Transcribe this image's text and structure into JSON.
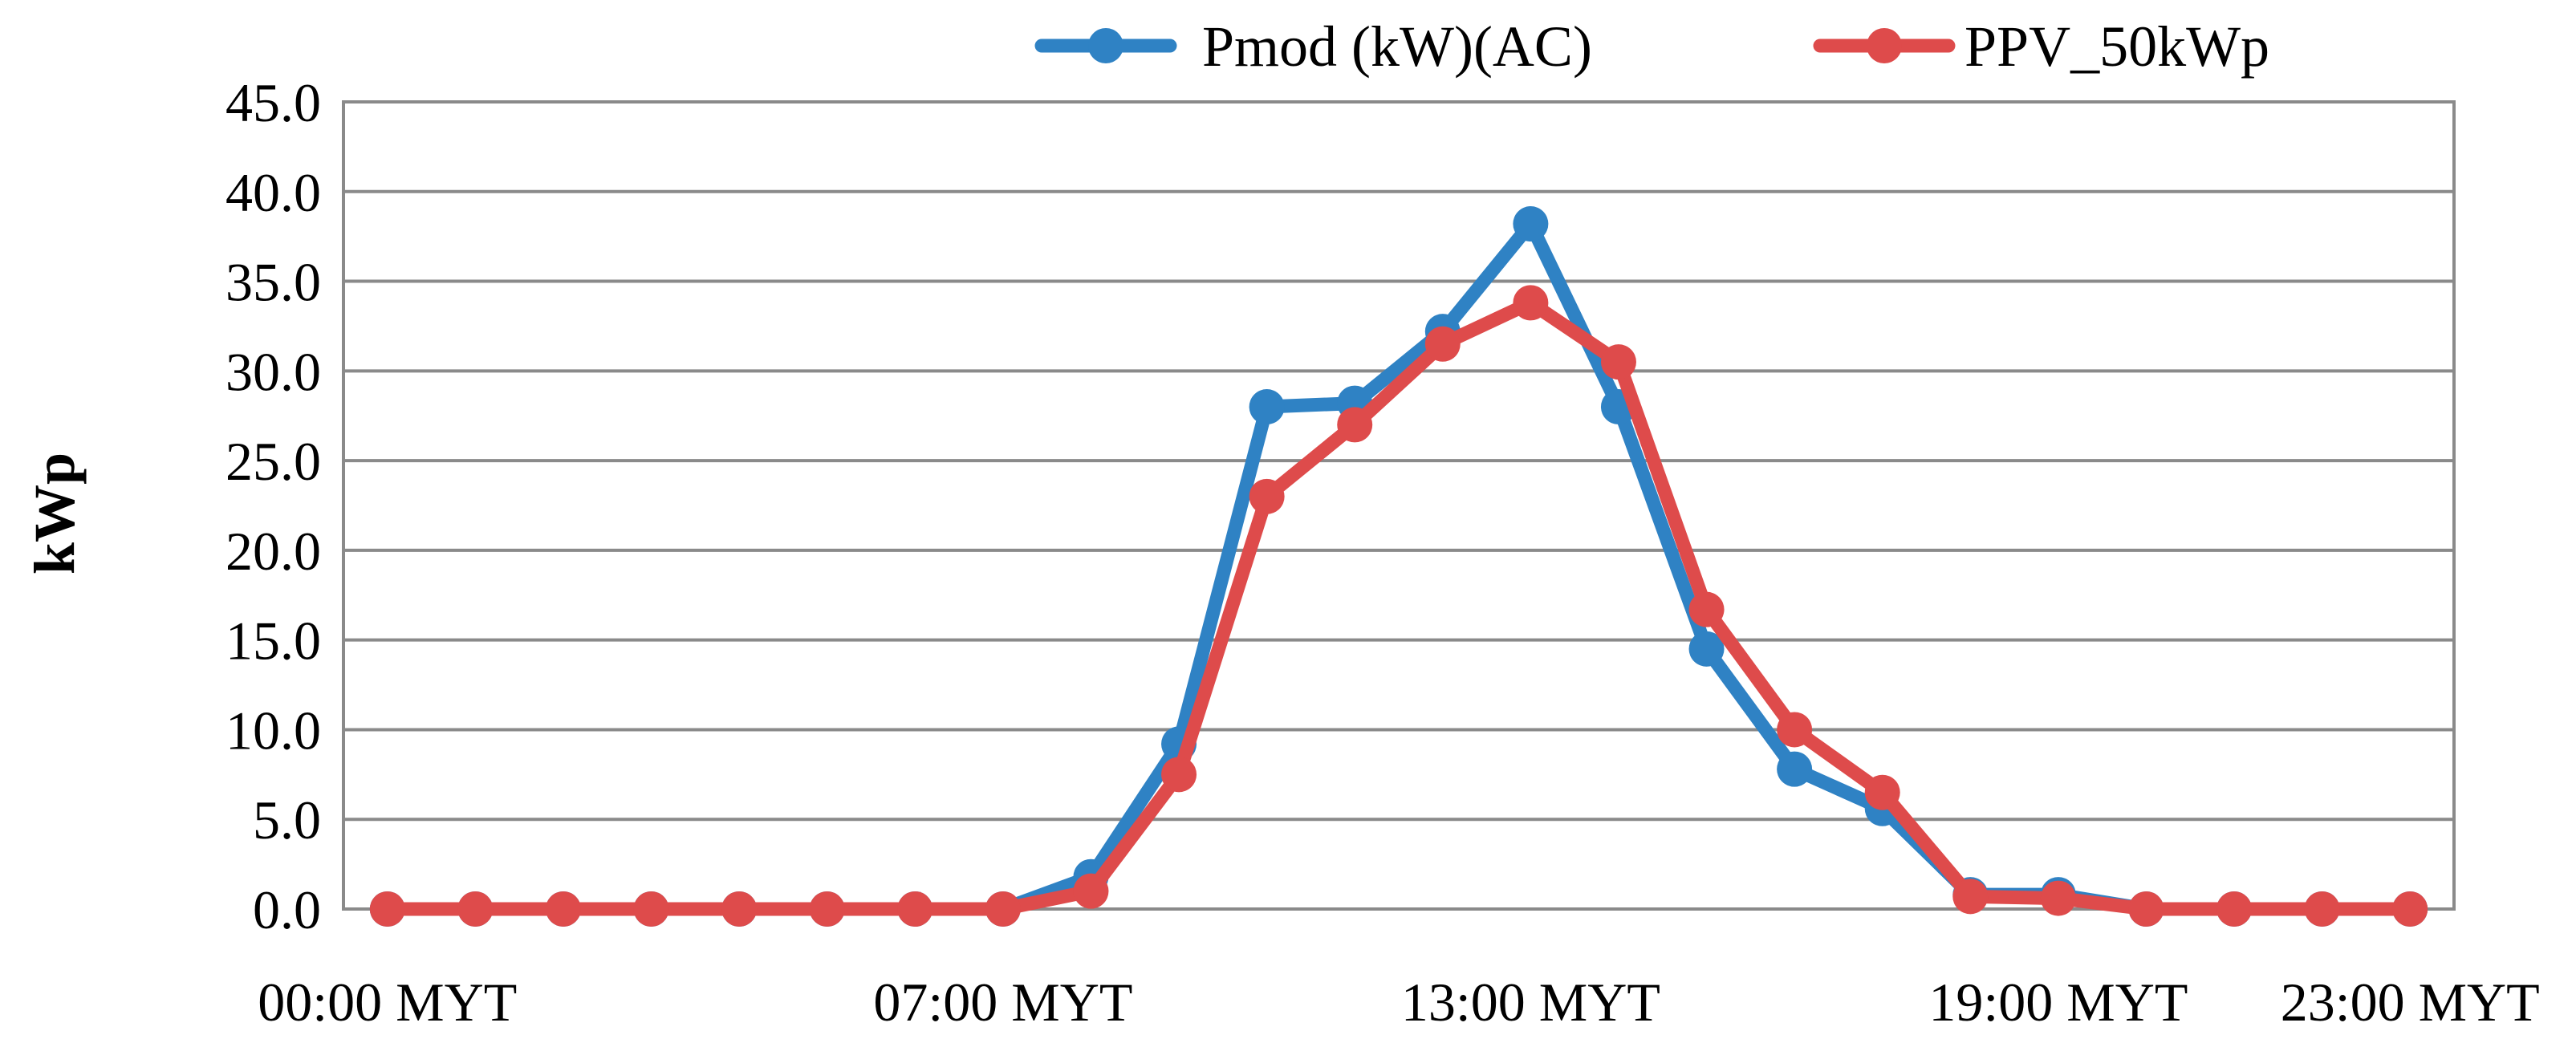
{
  "colors": {
    "series_pmod": "#2F82C4",
    "series_ppv": "#DE4B4B",
    "grid": "#8A8A8A",
    "background": "#FFFFFF"
  },
  "chart_data": {
    "type": "line",
    "title": "",
    "xlabel": "",
    "ylabel": "kWp",
    "x": [
      "00:00",
      "01:00",
      "02:00",
      "03:00",
      "04:00",
      "05:00",
      "06:00",
      "07:00",
      "08:00",
      "09:00",
      "10:00",
      "11:00",
      "12:00",
      "13:00",
      "14:00",
      "15:00",
      "16:00",
      "17:00",
      "18:00",
      "19:00",
      "20:00",
      "21:00",
      "22:00",
      "23:00"
    ],
    "x_tick_labels": [
      {
        "index": 0,
        "label": "00:00 MYT"
      },
      {
        "index": 7,
        "label": "07:00 MYT"
      },
      {
        "index": 13,
        "label": "13:00 MYT"
      },
      {
        "index": 19,
        "label": "19:00 MYT"
      },
      {
        "index": 23,
        "label": "23:00 MYT"
      }
    ],
    "ylim": [
      0,
      45
    ],
    "y_ticks": [
      "0.0",
      "5.0",
      "10.0",
      "15.0",
      "20.0",
      "25.0",
      "30.0",
      "35.0",
      "40.0",
      "45.0"
    ],
    "grid": true,
    "legend_position": "top-right",
    "series": [
      {
        "name": "Pmod (kW)(AC)",
        "color": "#2F82C4",
        "values": [
          0,
          0,
          0,
          0,
          0,
          0,
          0,
          0,
          1.8,
          9.2,
          28.0,
          28.2,
          32.2,
          38.2,
          28.0,
          14.5,
          7.8,
          5.6,
          0.8,
          0.8,
          0,
          0,
          0,
          0
        ]
      },
      {
        "name": "PPV_50kWp",
        "color": "#DE4B4B",
        "values": [
          0,
          0,
          0,
          0,
          0,
          0,
          0,
          0,
          1.0,
          7.5,
          23.0,
          27.0,
          31.5,
          33.8,
          30.5,
          16.7,
          10.0,
          6.5,
          0.7,
          0.6,
          0,
          0,
          0,
          0
        ]
      }
    ]
  }
}
